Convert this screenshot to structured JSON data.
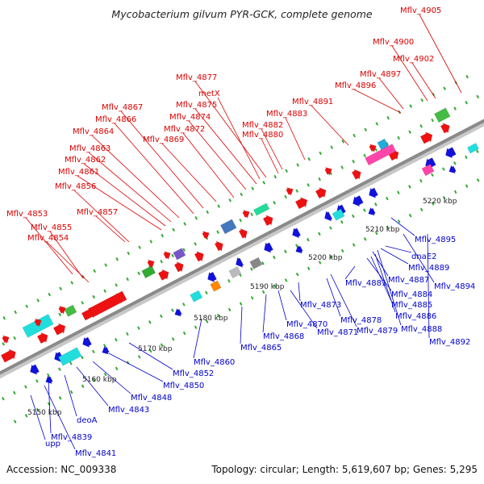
{
  "title": "Mycobacterium gilvum PYR-GCK, complete genome",
  "footer": {
    "accession": "Accession: NC_009338",
    "summary": "Topology: circular; Length: 5,619,607 bp; Genes: 5,295"
  },
  "colors": {
    "forward_label": "#dd0000",
    "reverse_label": "#0000cc",
    "backbone": "#999999",
    "tick": "#33aa33"
  },
  "ticks": [
    "5150 kbp",
    "5160 kbp",
    "5170 kbp",
    "5180 kbp",
    "5190 kbp",
    "5200 kbp",
    "5210 kbp",
    "5220 kbp"
  ],
  "forward_labels": [
    "Mflv_4853",
    "Mflv_4855",
    "Mflv_4854",
    "Mflv_4857",
    "Mflv_4856",
    "Mflv_4861",
    "Mflv_4862",
    "Mflv_4863",
    "Mflv_4864",
    "Mflv_4866",
    "Mflv_4867",
    "Mflv_4869",
    "Mflv_4872",
    "Mflv_4874",
    "Mflv_4875",
    "metX",
    "Mflv_4877",
    "Mflv_4880",
    "Mflv_4882",
    "Mflv_4883",
    "Mflv_4891",
    "Mflv_4896",
    "Mflv_4897",
    "Mflv_4900",
    "Mflv_4902",
    "Mflv_4905"
  ],
  "reverse_labels": [
    "upp",
    "Mflv_4841",
    "Mflv_4839",
    "deoA",
    "Mflv_4843",
    "Mflv_4848",
    "Mflv_4850",
    "Mflv_4852",
    "Mflv_4860",
    "Mflv_4865",
    "Mflv_4868",
    "Mflv_4870",
    "Mflv_4871",
    "Mflv_4873",
    "Mflv_4878",
    "Mflv_4879",
    "Mflv_4881",
    "Mflv_4884",
    "Mflv_4885",
    "Mflv_4886",
    "Mflv_4887",
    "Mflv_4888",
    "Mflv_4889",
    "dnaE2",
    "Mflv_4892",
    "Mflv_4894",
    "Mflv_4895"
  ]
}
